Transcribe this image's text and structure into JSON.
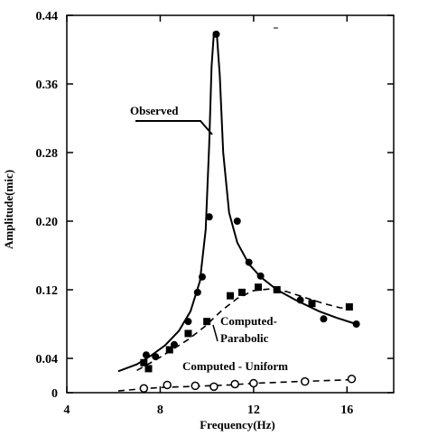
{
  "chart_data": {
    "type": "line",
    "xlabel": "Frequency(Hz)",
    "ylabel": "Amplitude(mic)",
    "xlim": [
      4,
      18
    ],
    "ylim": [
      0,
      0.44
    ],
    "xticks": [
      4,
      8,
      12,
      16
    ],
    "yticks": [
      0,
      0.04,
      0.12,
      0.2,
      0.28,
      0.36,
      0.44
    ],
    "xtick_labels": [
      "4",
      "8",
      "12",
      "16"
    ],
    "ytick_labels": [
      "0",
      "0.04",
      "0.12",
      "0.20",
      "0.28",
      "0.36",
      "0.44"
    ],
    "grid": false,
    "series": [
      {
        "name": "Observed",
        "line_style": "solid",
        "marker": "filled-circle",
        "curve": [
          [
            6.2,
            0.025
          ],
          [
            7.0,
            0.033
          ],
          [
            7.6,
            0.043
          ],
          [
            8.2,
            0.055
          ],
          [
            8.8,
            0.072
          ],
          [
            9.3,
            0.095
          ],
          [
            9.7,
            0.13
          ],
          [
            9.95,
            0.19
          ],
          [
            10.1,
            0.29
          ],
          [
            10.2,
            0.38
          ],
          [
            10.3,
            0.42
          ],
          [
            10.42,
            0.42
          ],
          [
            10.55,
            0.37
          ],
          [
            10.7,
            0.28
          ],
          [
            10.95,
            0.21
          ],
          [
            11.3,
            0.175
          ],
          [
            11.8,
            0.15
          ],
          [
            12.3,
            0.135
          ],
          [
            13.0,
            0.12
          ],
          [
            13.8,
            0.108
          ],
          [
            14.8,
            0.095
          ],
          [
            15.6,
            0.087
          ],
          [
            16.4,
            0.08
          ]
        ],
        "points": [
          [
            7.4,
            0.044
          ],
          [
            7.8,
            0.042
          ],
          [
            8.6,
            0.056
          ],
          [
            9.2,
            0.083
          ],
          [
            9.6,
            0.117
          ],
          [
            9.8,
            0.135
          ],
          [
            10.1,
            0.205
          ],
          [
            10.4,
            0.418
          ],
          [
            11.3,
            0.2
          ],
          [
            11.8,
            0.152
          ],
          [
            12.3,
            0.136
          ],
          [
            13.0,
            0.12
          ],
          [
            14.0,
            0.108
          ],
          [
            15.0,
            0.086
          ],
          [
            16.4,
            0.08
          ]
        ]
      },
      {
        "name": "Computed-Parabolic",
        "line_style": "dashed",
        "marker": "filled-square",
        "curve": [
          [
            7.0,
            0.026
          ],
          [
            7.8,
            0.038
          ],
          [
            8.5,
            0.05
          ],
          [
            9.2,
            0.062
          ],
          [
            9.9,
            0.077
          ],
          [
            10.6,
            0.095
          ],
          [
            11.3,
            0.11
          ],
          [
            12.0,
            0.119
          ],
          [
            12.7,
            0.121
          ],
          [
            13.4,
            0.118
          ],
          [
            14.2,
            0.111
          ],
          [
            15.0,
            0.104
          ],
          [
            15.7,
            0.099
          ],
          [
            16.2,
            0.098
          ]
        ],
        "points": [
          [
            7.3,
            0.035
          ],
          [
            7.5,
            0.028
          ],
          [
            8.4,
            0.05
          ],
          [
            9.2,
            0.069
          ],
          [
            10.0,
            0.083
          ],
          [
            11.0,
            0.113
          ],
          [
            11.5,
            0.117
          ],
          [
            12.2,
            0.123
          ],
          [
            13.0,
            0.12
          ],
          [
            14.5,
            0.104
          ],
          [
            16.1,
            0.1
          ]
        ]
      },
      {
        "name": "Computed - Uniform",
        "line_style": "dashed",
        "marker": "open-circle",
        "curve": [
          [
            6.2,
            0.002
          ],
          [
            7.0,
            0.004
          ],
          [
            8.0,
            0.006
          ],
          [
            9.0,
            0.007
          ],
          [
            10.0,
            0.008
          ],
          [
            11.0,
            0.009
          ],
          [
            12.0,
            0.011
          ],
          [
            13.0,
            0.012
          ],
          [
            14.0,
            0.013
          ],
          [
            15.0,
            0.014
          ],
          [
            16.0,
            0.015
          ],
          [
            16.4,
            0.015
          ]
        ],
        "points": [
          [
            7.3,
            0.005
          ],
          [
            8.3,
            0.009
          ],
          [
            9.5,
            0.008
          ],
          [
            10.3,
            0.007
          ],
          [
            11.2,
            0.01
          ],
          [
            12.0,
            0.011
          ],
          [
            14.2,
            0.013
          ],
          [
            16.2,
            0.016
          ]
        ]
      }
    ],
    "annotations": [
      {
        "text": "Observed",
        "series": "Observed"
      },
      {
        "text": "Computed-",
        "text2": "Parabolic",
        "series": "Computed-Parabolic"
      },
      {
        "text": "Computed - Uniform",
        "series": "Computed - Uniform"
      }
    ]
  }
}
